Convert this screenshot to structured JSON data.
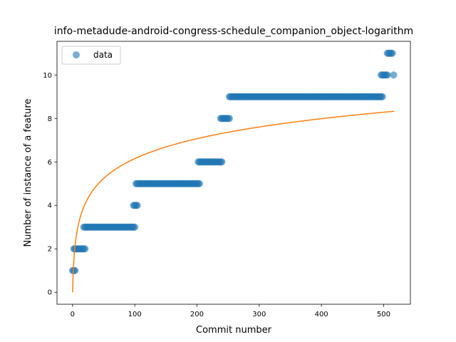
{
  "chart_data": {
    "type": "scatter",
    "title": "info-metadude-android-congress-schedule_companion_object-logarithm",
    "xlabel": "Commit number",
    "ylabel": "Number of instance of a feature",
    "xlim": [
      -25,
      543
    ],
    "ylim": [
      -0.55,
      11.55
    ],
    "xticks": [
      0,
      100,
      200,
      300,
      400,
      500
    ],
    "yticks": [
      0,
      2,
      4,
      6,
      8,
      10
    ],
    "grid": false,
    "legend": {
      "placement": "top-left",
      "entries": [
        "data"
      ]
    },
    "colors": {
      "data": "#1f77b4",
      "fit": "#ff7f0e"
    },
    "series": [
      {
        "name": "data",
        "kind": "points",
        "segments": [
          {
            "x_start": 0,
            "x_end": 4,
            "y": 1
          },
          {
            "x_start": 2,
            "x_end": 20,
            "y": 2
          },
          {
            "x_start": 18,
            "x_end": 100,
            "y": 3
          },
          {
            "x_start": 98,
            "x_end": 104,
            "y": 4
          },
          {
            "x_start": 102,
            "x_end": 204,
            "y": 5
          },
          {
            "x_start": 202,
            "x_end": 240,
            "y": 6
          },
          {
            "x_start": 238,
            "x_end": 252,
            "y": 8
          },
          {
            "x_start": 252,
            "x_end": 498,
            "y": 9
          },
          {
            "x_start": 496,
            "x_end": 506,
            "y": 10
          },
          {
            "x_start": 506,
            "x_end": 514,
            "y": 11
          },
          {
            "x_start": 516,
            "x_end": 516,
            "y": 10
          }
        ]
      },
      {
        "kind": "line",
        "fit": {
          "form": "a*ln(x+1)",
          "a": 1.333
        },
        "x_range": [
          0,
          517
        ]
      }
    ]
  }
}
